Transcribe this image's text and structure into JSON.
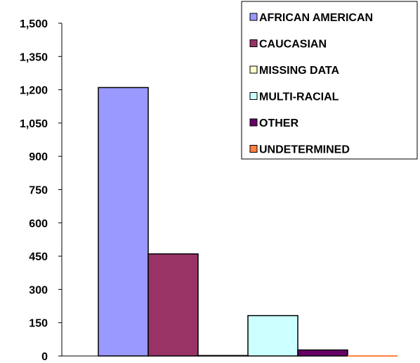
{
  "chart_data": {
    "type": "bar",
    "title": "",
    "xlabel": "",
    "ylabel": "",
    "ylim": [
      0,
      1500
    ],
    "y_ticks": [
      "0",
      "150",
      "300",
      "450",
      "600",
      "750",
      "900",
      "1,050",
      "1,200",
      "1,350",
      "1,500"
    ],
    "grid": false,
    "legend_position": "top-right",
    "series": [
      {
        "name": "AFRICAN AMERICAN",
        "value": 1210,
        "color": "#9999ff"
      },
      {
        "name": "CAUCASIAN",
        "value": 460,
        "color": "#993366"
      },
      {
        "name": "MISSING DATA",
        "value": 2,
        "color": "#ffffcc"
      },
      {
        "name": "MULTI-RACIAL",
        "value": 182,
        "color": "#ccffff"
      },
      {
        "name": "OTHER",
        "value": 27,
        "color": "#660066"
      },
      {
        "name": "UNDETERMINED",
        "value": 0,
        "color": "#ff8040"
      }
    ]
  }
}
